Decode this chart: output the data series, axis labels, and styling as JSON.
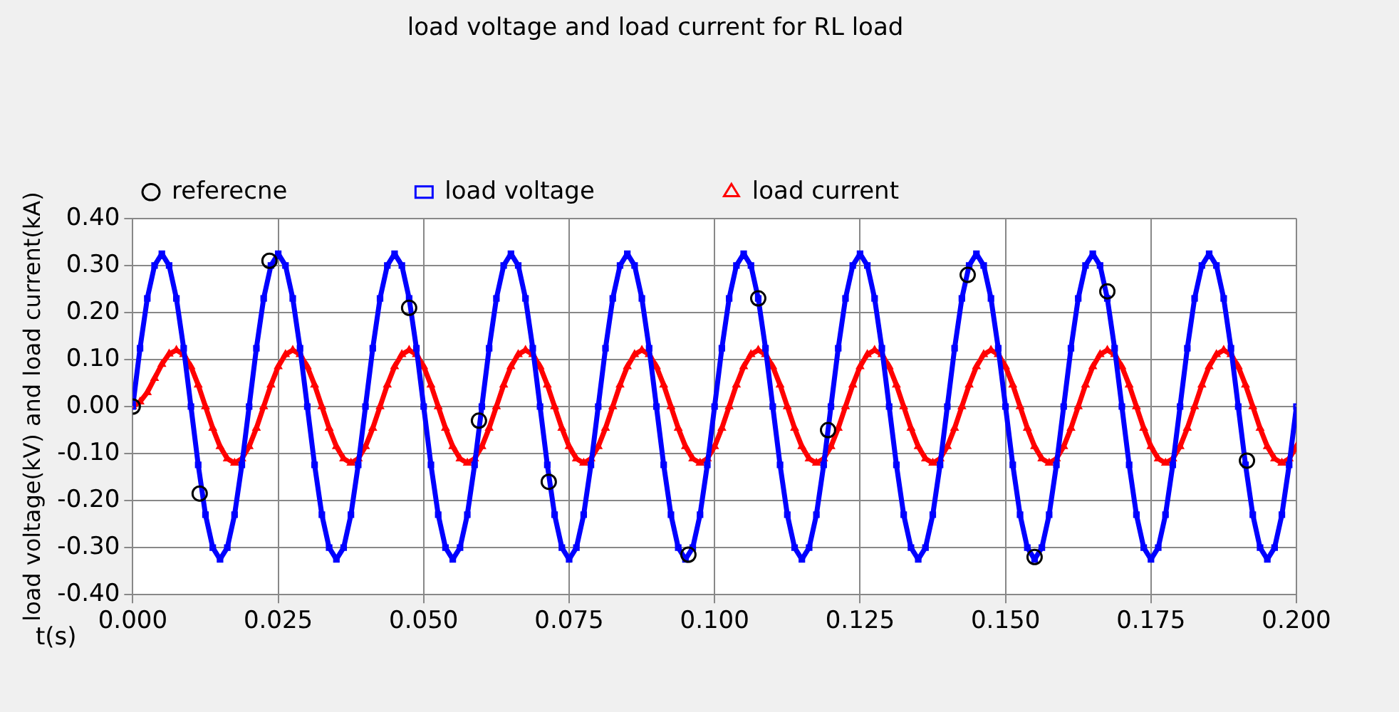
{
  "chart_data": {
    "type": "line",
    "title": "load voltage and load current for RL load",
    "xlabel": "t(s)",
    "ylabel": "load voltage(kV) and load current(kA)",
    "x": [
      0,
      0.00125,
      0.0025,
      0.00375,
      0.005,
      0.00625,
      0.0075,
      0.00875,
      0.01,
      0.01125,
      0.0125,
      0.01375,
      0.015,
      0.01625,
      0.0175,
      0.01875,
      0.02,
      0.02125,
      0.0225,
      0.02375,
      0.025,
      0.02625,
      0.0275,
      0.02875,
      0.03,
      0.03125,
      0.0325,
      0.03375,
      0.035,
      0.03625,
      0.0375,
      0.03875,
      0.04,
      0.04125,
      0.0425,
      0.04375,
      0.045,
      0.04625,
      0.0475,
      0.04875,
      0.05,
      0.05125,
      0.0525,
      0.05375,
      0.055,
      0.05625,
      0.0575,
      0.05875,
      0.06,
      0.06125,
      0.0625,
      0.06375,
      0.065,
      0.06625,
      0.0675,
      0.06875,
      0.07,
      0.07125,
      0.0725,
      0.07375,
      0.075,
      0.07625,
      0.0775,
      0.07875,
      0.08,
      0.08125,
      0.0825,
      0.08375,
      0.085,
      0.08625,
      0.0875,
      0.08875,
      0.09,
      0.09125,
      0.0925,
      0.09375,
      0.095,
      0.09625,
      0.0975,
      0.09875,
      0.1,
      0.10125,
      0.1025,
      0.10375,
      0.105,
      0.10625,
      0.1075,
      0.10875,
      0.11,
      0.11125,
      0.1125,
      0.11375,
      0.115,
      0.11625,
      0.1175,
      0.11875,
      0.12,
      0.12125,
      0.1225,
      0.12375,
      0.125,
      0.12625,
      0.1275,
      0.12875,
      0.13,
      0.13125,
      0.1325,
      0.13375,
      0.135,
      0.13625,
      0.1375,
      0.13875,
      0.14,
      0.14125,
      0.1425,
      0.14375,
      0.145,
      0.14625,
      0.1475,
      0.14875,
      0.15,
      0.15125,
      0.1525,
      0.15375,
      0.155,
      0.15625,
      0.1575,
      0.15875,
      0.16,
      0.16125,
      0.1625,
      0.16375,
      0.165,
      0.16625,
      0.1675,
      0.16875,
      0.17,
      0.17125,
      0.1725,
      0.17375,
      0.175,
      0.17625,
      0.1775,
      0.17875,
      0.18,
      0.18125,
      0.1825,
      0.18375,
      0.185,
      0.18625,
      0.1875,
      0.18875,
      0.19,
      0.19125,
      0.1925,
      0.19375,
      0.195,
      0.19625,
      0.1975,
      0.19875,
      0.2
    ],
    "series": [
      {
        "name": "referecne",
        "type": "scatter",
        "marker": "circle",
        "color": "#000000",
        "x": [
          0,
          0.0115,
          0.0235,
          0.0475,
          0.0595,
          0.0715,
          0.0955,
          0.1075,
          0.1195,
          0.1435,
          0.155,
          0.1675,
          0.1915
        ],
        "values": [
          0,
          -0.185,
          0.31,
          0.21,
          -0.03,
          -0.16,
          -0.315,
          0.23,
          -0.05,
          0.28,
          -0.32,
          0.245,
          -0.115
        ]
      },
      {
        "name": "load voltage",
        "marker": "square",
        "color": "#0000ff",
        "values": [
          0,
          0.124,
          0.23,
          0.3,
          0.325,
          0.3,
          0.23,
          0.124,
          0,
          -0.124,
          -0.23,
          -0.3,
          -0.325,
          -0.3,
          -0.23,
          -0.124,
          0,
          0.124,
          0.23,
          0.3,
          0.325,
          0.3,
          0.23,
          0.124,
          0,
          -0.124,
          -0.23,
          -0.3,
          -0.325,
          -0.3,
          -0.23,
          -0.124,
          0,
          0.124,
          0.23,
          0.3,
          0.325,
          0.3,
          0.23,
          0.124,
          0,
          -0.124,
          -0.23,
          -0.3,
          -0.325,
          -0.3,
          -0.23,
          -0.124,
          0,
          0.124,
          0.23,
          0.3,
          0.325,
          0.3,
          0.23,
          0.124,
          0,
          -0.124,
          -0.23,
          -0.3,
          -0.325,
          -0.3,
          -0.23,
          -0.124,
          0,
          0.124,
          0.23,
          0.3,
          0.325,
          0.3,
          0.23,
          0.124,
          0,
          -0.124,
          -0.23,
          -0.3,
          -0.325,
          -0.3,
          -0.23,
          -0.124,
          0,
          0.124,
          0.23,
          0.3,
          0.325,
          0.3,
          0.23,
          0.124,
          0,
          -0.124,
          -0.23,
          -0.3,
          -0.325,
          -0.3,
          -0.23,
          -0.124,
          0,
          0.124,
          0.23,
          0.3,
          0.325,
          0.3,
          0.23,
          0.124,
          0,
          -0.124,
          -0.23,
          -0.3,
          -0.325,
          -0.3,
          -0.23,
          -0.124,
          0,
          0.124,
          0.23,
          0.3,
          0.325,
          0.3,
          0.23,
          0.124,
          0,
          -0.124,
          -0.23,
          -0.3,
          -0.325,
          -0.3,
          -0.23,
          -0.124,
          0,
          0.124,
          0.23,
          0.3,
          0.325,
          0.3,
          0.23,
          0.124,
          0,
          -0.124,
          -0.23,
          -0.3,
          -0.325,
          -0.3,
          -0.23,
          -0.124,
          0,
          0.124,
          0.23,
          0.3,
          0.325,
          0.3,
          0.23,
          0.124,
          0,
          -0.124,
          -0.23,
          -0.3,
          -0.325,
          -0.3,
          -0.23,
          -0.124,
          0
        ]
      },
      {
        "name": "load current",
        "marker": "triangle",
        "color": "#ff0000",
        "values": [
          0,
          0.01,
          0.03,
          0.06,
          0.09,
          0.112,
          0.12,
          0.111,
          0.085,
          0.046,
          0,
          -0.046,
          -0.085,
          -0.111,
          -0.12,
          -0.111,
          -0.085,
          -0.046,
          0,
          0.046,
          0.085,
          0.111,
          0.12,
          0.111,
          0.085,
          0.046,
          0,
          -0.046,
          -0.085,
          -0.111,
          -0.12,
          -0.111,
          -0.085,
          -0.046,
          0,
          0.046,
          0.085,
          0.111,
          0.12,
          0.111,
          0.085,
          0.046,
          0,
          -0.046,
          -0.085,
          -0.111,
          -0.12,
          -0.111,
          -0.085,
          -0.046,
          0,
          0.046,
          0.085,
          0.111,
          0.12,
          0.111,
          0.085,
          0.046,
          0,
          -0.046,
          -0.085,
          -0.111,
          -0.12,
          -0.111,
          -0.085,
          -0.046,
          0,
          0.046,
          0.085,
          0.111,
          0.12,
          0.111,
          0.085,
          0.046,
          0,
          -0.046,
          -0.085,
          -0.111,
          -0.12,
          -0.111,
          -0.085,
          -0.046,
          0,
          0.046,
          0.085,
          0.111,
          0.12,
          0.111,
          0.085,
          0.046,
          0,
          -0.046,
          -0.085,
          -0.111,
          -0.12,
          -0.111,
          -0.085,
          -0.046,
          0,
          0.046,
          0.085,
          0.111,
          0.12,
          0.111,
          0.085,
          0.046,
          0,
          -0.046,
          -0.085,
          -0.111,
          -0.12,
          -0.111,
          -0.085,
          -0.046,
          0,
          0.046,
          0.085,
          0.111,
          0.12,
          0.111,
          0.085,
          0.046,
          0,
          -0.046,
          -0.085,
          -0.111,
          -0.12,
          -0.111,
          -0.085,
          -0.046,
          0,
          0.046,
          0.085,
          0.111,
          0.12,
          0.111,
          0.085,
          0.046,
          0,
          -0.046,
          -0.085,
          -0.111,
          -0.12,
          -0.111,
          -0.085,
          -0.046,
          0,
          0.046,
          0.085,
          0.111,
          0.12,
          0.111,
          0.085,
          0.046,
          0,
          -0.046,
          -0.085,
          -0.111,
          -0.12,
          -0.111,
          -0.085
        ]
      }
    ],
    "xlim": [
      0,
      0.2
    ],
    "xticks": [
      {
        "value": 0,
        "label": "0.000"
      },
      {
        "value": 0.025,
        "label": "0.025"
      },
      {
        "value": 0.05,
        "label": "0.050"
      },
      {
        "value": 0.075,
        "label": "0.075"
      },
      {
        "value": 0.1,
        "label": "0.100"
      },
      {
        "value": 0.125,
        "label": "0.125"
      },
      {
        "value": 0.15,
        "label": "0.150"
      },
      {
        "value": 0.175,
        "label": "0.175"
      },
      {
        "value": 0.2,
        "label": "0.200"
      }
    ],
    "ylim": [
      -0.4,
      0.4
    ],
    "yticks": [
      {
        "value": -0.4,
        "label": "-0.40"
      },
      {
        "value": -0.3,
        "label": "-0.30"
      },
      {
        "value": -0.2,
        "label": "-0.20"
      },
      {
        "value": -0.1,
        "label": "-0.10"
      },
      {
        "value": 0,
        "label": "0.00"
      },
      {
        "value": 0.1,
        "label": "0.10"
      },
      {
        "value": 0.2,
        "label": "0.20"
      },
      {
        "value": 0.3,
        "label": "0.30"
      },
      {
        "value": 0.4,
        "label": "0.40"
      }
    ],
    "grid": true,
    "legend": "top",
    "line_style": "solid"
  }
}
